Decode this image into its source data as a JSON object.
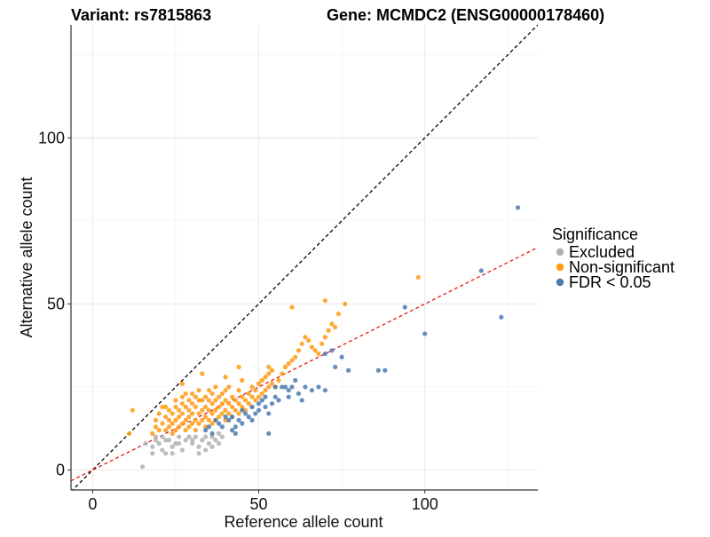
{
  "chart_data": {
    "type": "scatter",
    "title_left": "Variant: rs7815863",
    "title_right": "Gene: MCMDC2 (ENSG00000178460)",
    "xlabel": "Reference allele count",
    "ylabel": "Alternative allele count",
    "xlim": [
      -6.5,
      134
    ],
    "ylim": [
      -6,
      134
    ],
    "xticks": [
      0,
      50,
      100
    ],
    "yticks": [
      0,
      50,
      100
    ],
    "grid": true,
    "reference_lines": [
      {
        "name": "identity",
        "color": "#000000",
        "style": "dashed",
        "intercept": 0,
        "slope": 1
      },
      {
        "name": "fit",
        "color": "#e41a1c",
        "style": "dashed",
        "intercept": 0,
        "slope": 0.5
      }
    ],
    "legend": {
      "title": "Significance",
      "position": "right",
      "entries": [
        {
          "label": "Excluded",
          "color": "#b0b0b0"
        },
        {
          "label": "Non-significant",
          "color": "#ff9912"
        },
        {
          "label": "FDR < 0.05",
          "color": "#4a7ab0"
        }
      ]
    },
    "series": [
      {
        "name": "Excluded",
        "color": "#b0b0b0",
        "points": [
          [
            15,
            1
          ],
          [
            18,
            5
          ],
          [
            18,
            7
          ],
          [
            19,
            9
          ],
          [
            20,
            8
          ],
          [
            21,
            6
          ],
          [
            22,
            9
          ],
          [
            22,
            5
          ],
          [
            23,
            9
          ],
          [
            24,
            7
          ],
          [
            25,
            8
          ],
          [
            26,
            10
          ],
          [
            27,
            6
          ],
          [
            28,
            9
          ],
          [
            29,
            10
          ],
          [
            30,
            8
          ],
          [
            31,
            10
          ],
          [
            32,
            7
          ],
          [
            33,
            9
          ],
          [
            34,
            10
          ],
          [
            35,
            8
          ],
          [
            36,
            10
          ],
          [
            37,
            9
          ],
          [
            38,
            11
          ],
          [
            39,
            10
          ],
          [
            19,
            10
          ],
          [
            21,
            10
          ],
          [
            26,
            8
          ],
          [
            32,
            5
          ],
          [
            36,
            7
          ],
          [
            16,
            8
          ],
          [
            24,
            5
          ],
          [
            30,
            9
          ],
          [
            34,
            6
          ],
          [
            38,
            8
          ]
        ]
      },
      {
        "name": "Non-significant",
        "color": "#ff9912",
        "points": [
          [
            11,
            11
          ],
          [
            12,
            18
          ],
          [
            18,
            11
          ],
          [
            19,
            13
          ],
          [
            19,
            15
          ],
          [
            20,
            12
          ],
          [
            20,
            17
          ],
          [
            21,
            14
          ],
          [
            21,
            19
          ],
          [
            22,
            12
          ],
          [
            22,
            16
          ],
          [
            22,
            19
          ],
          [
            23,
            13
          ],
          [
            23,
            15
          ],
          [
            23,
            18
          ],
          [
            24,
            11
          ],
          [
            24,
            14
          ],
          [
            24,
            17
          ],
          [
            25,
            12
          ],
          [
            25,
            15
          ],
          [
            25,
            19
          ],
          [
            25,
            21
          ],
          [
            26,
            13
          ],
          [
            26,
            16
          ],
          [
            26,
            18
          ],
          [
            27,
            14
          ],
          [
            27,
            17
          ],
          [
            27,
            20
          ],
          [
            27,
            22
          ],
          [
            28,
            12
          ],
          [
            28,
            15
          ],
          [
            28,
            19
          ],
          [
            28,
            23
          ],
          [
            29,
            13
          ],
          [
            29,
            16
          ],
          [
            29,
            18
          ],
          [
            29,
            21
          ],
          [
            30,
            14
          ],
          [
            30,
            17
          ],
          [
            30,
            20
          ],
          [
            30,
            23
          ],
          [
            31,
            12
          ],
          [
            31,
            15
          ],
          [
            31,
            19
          ],
          [
            31,
            22
          ],
          [
            32,
            14
          ],
          [
            32,
            17
          ],
          [
            32,
            21
          ],
          [
            32,
            24
          ],
          [
            33,
            15
          ],
          [
            33,
            18
          ],
          [
            33,
            21
          ],
          [
            33,
            29
          ],
          [
            34,
            13
          ],
          [
            34,
            16
          ],
          [
            34,
            19
          ],
          [
            34,
            22
          ],
          [
            35,
            15
          ],
          [
            35,
            18
          ],
          [
            35,
            21
          ],
          [
            35,
            24
          ],
          [
            36,
            14
          ],
          [
            36,
            17
          ],
          [
            36,
            20
          ],
          [
            36,
            23
          ],
          [
            37,
            15
          ],
          [
            37,
            18
          ],
          [
            37,
            21
          ],
          [
            37,
            25
          ],
          [
            38,
            16
          ],
          [
            38,
            19
          ],
          [
            38,
            22
          ],
          [
            39,
            17
          ],
          [
            39,
            20
          ],
          [
            39,
            23
          ],
          [
            40,
            15
          ],
          [
            40,
            18
          ],
          [
            40,
            21
          ],
          [
            40,
            24
          ],
          [
            40,
            28
          ],
          [
            41,
            17
          ],
          [
            41,
            20
          ],
          [
            41,
            25
          ],
          [
            42,
            16
          ],
          [
            42,
            19
          ],
          [
            42,
            22
          ],
          [
            43,
            18
          ],
          [
            43,
            21
          ],
          [
            44,
            17
          ],
          [
            44,
            20
          ],
          [
            44,
            24
          ],
          [
            45,
            19
          ],
          [
            45,
            22
          ],
          [
            45,
            27
          ],
          [
            46,
            18
          ],
          [
            46,
            21
          ],
          [
            47,
            20
          ],
          [
            47,
            23
          ],
          [
            48,
            19
          ],
          [
            48,
            22
          ],
          [
            48,
            25
          ],
          [
            49,
            21
          ],
          [
            49,
            24
          ],
          [
            50,
            22
          ],
          [
            50,
            26
          ],
          [
            51,
            23
          ],
          [
            51,
            27
          ],
          [
            52,
            24
          ],
          [
            52,
            28
          ],
          [
            53,
            25
          ],
          [
            53,
            29
          ],
          [
            54,
            26
          ],
          [
            54,
            30
          ],
          [
            55,
            25
          ],
          [
            56,
            27
          ],
          [
            57,
            29
          ],
          [
            58,
            31
          ],
          [
            59,
            32
          ],
          [
            60,
            33
          ],
          [
            61,
            34
          ],
          [
            62,
            36
          ],
          [
            63,
            38
          ],
          [
            64,
            40
          ],
          [
            65,
            39
          ],
          [
            66,
            37
          ],
          [
            67,
            36
          ],
          [
            68,
            35
          ],
          [
            69,
            38
          ],
          [
            70,
            40
          ],
          [
            71,
            42
          ],
          [
            72,
            44
          ],
          [
            73,
            43
          ],
          [
            74,
            47
          ],
          [
            70,
            51
          ],
          [
            60,
            49
          ],
          [
            98,
            58
          ],
          [
            76,
            50
          ],
          [
            44,
            31
          ],
          [
            53,
            31
          ],
          [
            27,
            26
          ]
        ]
      },
      {
        "name": "FDR < 0.05",
        "color": "#4a7ab0",
        "points": [
          [
            34,
            12
          ],
          [
            35,
            13
          ],
          [
            36,
            11
          ],
          [
            37,
            15
          ],
          [
            38,
            14
          ],
          [
            39,
            13
          ],
          [
            40,
            16
          ],
          [
            41,
            15
          ],
          [
            42,
            16
          ],
          [
            42,
            12
          ],
          [
            43,
            13
          ],
          [
            44,
            15
          ],
          [
            45,
            18
          ],
          [
            46,
            17
          ],
          [
            47,
            16
          ],
          [
            48,
            19
          ],
          [
            49,
            17
          ],
          [
            50,
            18
          ],
          [
            50,
            20
          ],
          [
            51,
            21
          ],
          [
            52,
            19
          ],
          [
            52,
            22
          ],
          [
            53,
            17
          ],
          [
            54,
            20
          ],
          [
            55,
            22
          ],
          [
            55,
            25
          ],
          [
            56,
            21
          ],
          [
            57,
            25
          ],
          [
            58,
            25
          ],
          [
            59,
            24
          ],
          [
            60,
            25
          ],
          [
            61,
            27
          ],
          [
            62,
            23
          ],
          [
            63,
            21
          ],
          [
            64,
            25
          ],
          [
            66,
            24
          ],
          [
            68,
            25
          ],
          [
            70,
            24
          ],
          [
            70,
            35
          ],
          [
            72,
            36
          ],
          [
            73,
            31
          ],
          [
            75,
            34
          ],
          [
            77,
            30
          ],
          [
            86,
            30
          ],
          [
            88,
            30
          ],
          [
            94,
            49
          ],
          [
            100,
            41
          ],
          [
            117,
            60
          ],
          [
            123,
            46
          ],
          [
            128,
            79
          ],
          [
            45,
            14
          ],
          [
            48,
            15
          ],
          [
            53,
            11
          ],
          [
            43,
            11
          ],
          [
            59,
            22
          ]
        ]
      }
    ]
  }
}
